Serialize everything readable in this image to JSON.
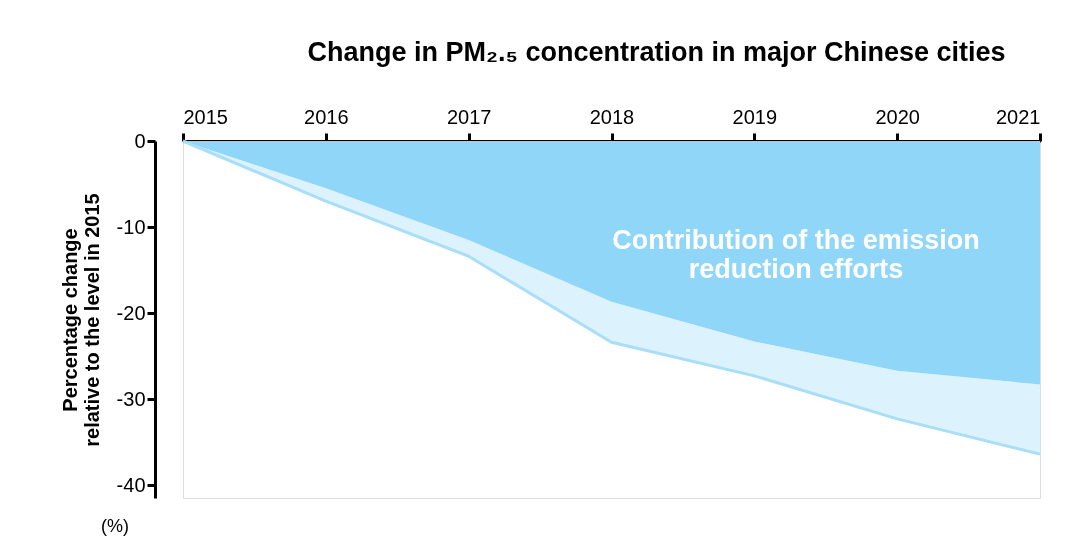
{
  "chart_data": {
    "type": "area",
    "title": "Change in PM₂.₅ concentration in major Chinese cities",
    "ylabel": "Percentage change\nrelative to the level in 2015",
    "x": [
      2015,
      2016,
      2017,
      2018,
      2019,
      2020,
      2021
    ],
    "series": [
      {
        "color": "#8fd6f8",
        "values": [
          0,
          -5.5,
          -11.5,
          -18.7,
          -23.3,
          -26.7,
          -28.3
        ]
      },
      {
        "type": "line",
        "color": "#a8def7",
        "values": [
          0,
          -7,
          -13.4,
          -23.4,
          -27.3,
          -32.3,
          -36.4
        ],
        "upper": [
          0,
          -5.5,
          -11.5,
          -18.7,
          -23.3,
          -26.7,
          -28.3
        ],
        "lower": [
          0,
          -7,
          -13.4,
          -23.4,
          -27.3,
          -32.3,
          -36.4
        ]
      }
    ],
    "xlim": [
      2015,
      2021
    ],
    "xticks": [
      2015,
      2016,
      2017,
      2018,
      2019,
      2020,
      2021
    ],
    "ylim": [
      -41.5,
      0
    ],
    "yticks": [
      0,
      -10,
      -20,
      -30,
      -40
    ],
    "annotations": [
      "Contribution of the emission\nreduction efforts",
      "(%)"
    ],
    "grid": false,
    "legend": false
  }
}
